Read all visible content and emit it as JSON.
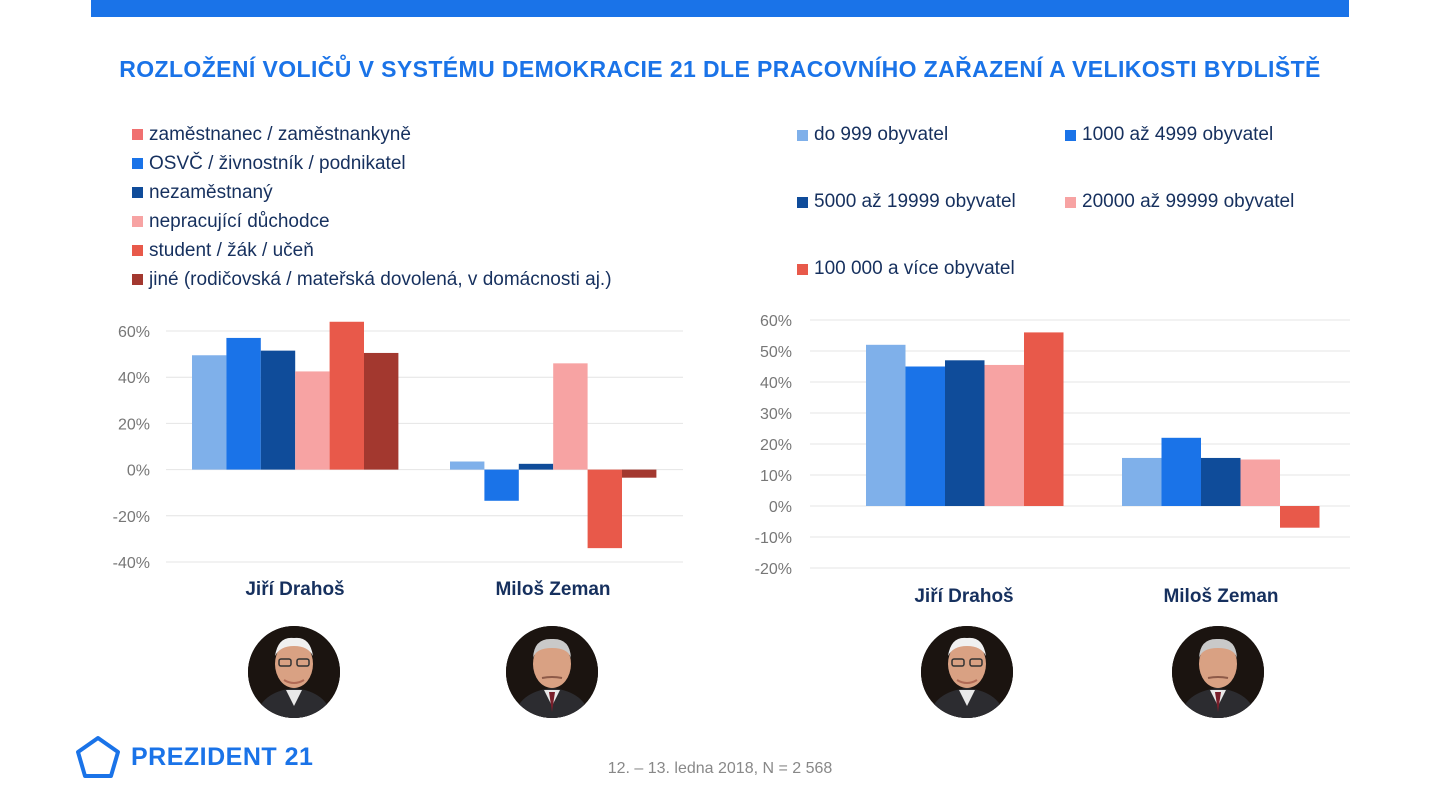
{
  "header": {
    "title": "ROZLOŽENÍ VOLIČŮ V SYSTÉMU DEMOKRACIE 21 DLE PRACOVNÍHO ZAŘAZENÍ A VELIKOSTI BYDLIŠTĚ"
  },
  "footer": {
    "logo_text": "PREZIDENT 21",
    "note": "12. – 13. ledna 2018, N = 2 568"
  },
  "chart_data": [
    {
      "type": "bar",
      "categories": [
        "Jiří Drahoš",
        "Miloš Zeman"
      ],
      "ylim": [
        -40,
        60
      ],
      "yticks": [
        60,
        40,
        20,
        0,
        -20,
        -40
      ],
      "tick_format": "{v}%",
      "grid": true,
      "legend_position": "top",
      "series": [
        {
          "name": "zaměstnanec / zaměstnankyně",
          "color": "#7fb0ea",
          "legend_color": "#f07070",
          "values": [
            49.5,
            3.5
          ]
        },
        {
          "name": "OSVČ / živnostník / podnikatel",
          "color": "#1a73e8",
          "legend_color": "#1a73e8",
          "values": [
            57,
            -13.5
          ]
        },
        {
          "name": "nezaměstnaný",
          "color": "#0f4c9a",
          "legend_color": "#0f4c9a",
          "values": [
            51.5,
            2.5
          ]
        },
        {
          "name": "nepracující důchodce",
          "color": "#f7a3a3",
          "legend_color": "#f7a3a3",
          "values": [
            42.5,
            46
          ]
        },
        {
          "name": "student / žák / učeň",
          "color": "#e8594a",
          "legend_color": "#e8594a",
          "values": [
            64,
            -34
          ]
        },
        {
          "name": "jiné (rodičovská / mateřská dovolená, v domácnosti aj.)",
          "color": "#a3382f",
          "legend_color": "#a3382f",
          "values": [
            50.5,
            -3.5
          ]
        }
      ]
    },
    {
      "type": "bar",
      "categories": [
        "Jiří Drahoš",
        "Miloš Zeman"
      ],
      "ylim": [
        -20,
        60
      ],
      "yticks": [
        60,
        50,
        40,
        30,
        20,
        10,
        0,
        -10,
        -20
      ],
      "tick_format": "{v}%",
      "grid": true,
      "legend_position": "top",
      "series": [
        {
          "name": "do 999 obyvatel",
          "color": "#7fb0ea",
          "values": [
            52,
            15.5
          ]
        },
        {
          "name": "1000 až 4999 obyvatel",
          "color": "#1a73e8",
          "values": [
            45,
            22
          ]
        },
        {
          "name": "5000 až 19999 obyvatel",
          "color": "#0f4c9a",
          "values": [
            47,
            15.5
          ]
        },
        {
          "name": "20000 až 99999 obyvatel",
          "color": "#f7a3a3",
          "values": [
            45.5,
            15
          ]
        },
        {
          "name": "100 000 a více obyvatel",
          "color": "#e8594a",
          "values": [
            56,
            -7
          ]
        }
      ]
    }
  ],
  "photos": {
    "drahos_icon": "portrait-drahos",
    "zeman_icon": "portrait-zeman"
  }
}
